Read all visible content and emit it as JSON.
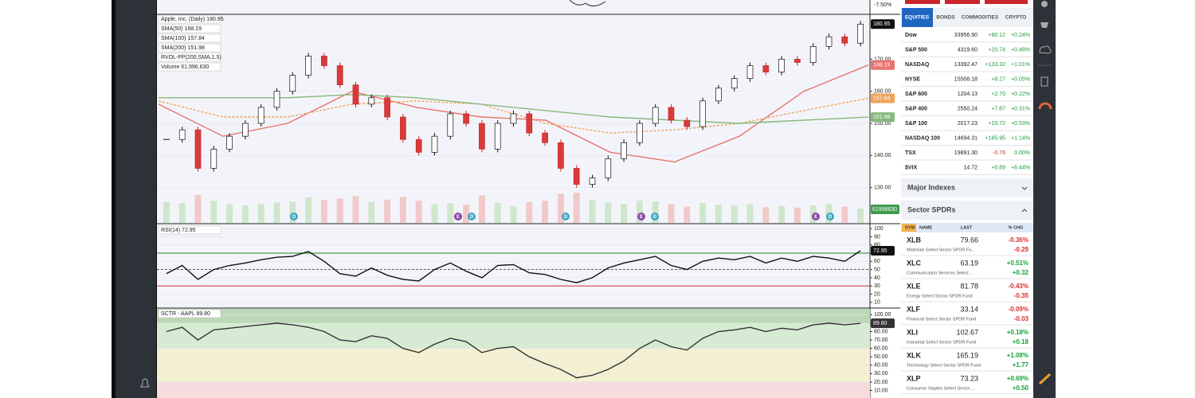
{
  "top_strip": {
    "label": "-7.50%"
  },
  "chart_data": [
    {
      "type": "candlestick",
      "series": [
        {
          "name": "Apple, Inc. (Daily) 180.95",
          "tag": "180.95",
          "color": "#111111",
          "values": [
            145,
            148,
            136,
            142,
            146,
            150,
            155,
            160,
            165,
            171,
            168,
            162,
            156,
            158,
            152,
            145,
            141,
            146,
            153,
            150,
            142,
            150,
            153,
            147,
            144,
            136,
            131,
            133,
            139,
            144,
            150,
            155,
            151,
            149,
            157,
            161,
            164,
            168,
            166,
            170,
            169,
            174,
            177,
            175,
            180.95
          ]
        },
        {
          "name": "SMA(50) 168.19",
          "tag": "168.19",
          "color": "#e8746e",
          "values": [
            156,
            146,
            150,
            160,
            155,
            152,
            151,
            141,
            138,
            146,
            160,
            168.19
          ]
        },
        {
          "name": "SMA(100) 157.84",
          "tag": "157.84",
          "color": "#f0a35a",
          "dashed": true,
          "values": [
            157,
            152,
            152,
            156,
            157,
            156,
            150,
            147,
            148,
            150,
            154,
            157.84
          ]
        },
        {
          "name": "SMA(200) 151.98",
          "tag": "151.98",
          "color": "#86b97a",
          "values": [
            158,
            158,
            158,
            159,
            158,
            156,
            154,
            152,
            151,
            150,
            151,
            151.98
          ]
        }
      ],
      "indicators": [
        "RVOL-PP(200,SMA,1.5)"
      ],
      "volume": {
        "name": "Volume 61,996,630",
        "tag": "61996630",
        "color": "#3f9b4f",
        "values": [
          90000000,
          85000000,
          120000000,
          95000000,
          80000000,
          75000000,
          82000000,
          88000000,
          92000000,
          110000000,
          98000000,
          105000000,
          115000000,
          90000000,
          100000000,
          112000000,
          95000000,
          80000000,
          85000000,
          78000000,
          118000000,
          86000000,
          72000000,
          90000000,
          95000000,
          125000000,
          130000000,
          100000000,
          88000000,
          82000000,
          96000000,
          92000000,
          80000000,
          70000000,
          85000000,
          78000000,
          74000000,
          80000000,
          68000000,
          72000000,
          66000000,
          75000000,
          80000000,
          70000000,
          61996630
        ]
      },
      "ylim": [
        119,
        184
      ],
      "yticks": [
        {
          "value": 170,
          "label": "170.00"
        },
        {
          "value": 160,
          "label": "160.00"
        },
        {
          "value": 150,
          "label": "150.00"
        },
        {
          "value": 140,
          "label": "140.00"
        },
        {
          "value": 130,
          "label": "130.00"
        }
      ],
      "events": [
        "D",
        "E",
        "D",
        "D",
        "E",
        "D",
        "E",
        "D"
      ]
    },
    {
      "type": "line",
      "series": [
        {
          "name": "RSI(14) 72.95",
          "tag": "72.95",
          "color": "#111111",
          "values": [
            45,
            55,
            38,
            50,
            55,
            58,
            62,
            65,
            66,
            72,
            60,
            45,
            42,
            52,
            43,
            38,
            36,
            50,
            58,
            48,
            40,
            55,
            56,
            46,
            44,
            38,
            34,
            40,
            52,
            58,
            62,
            66,
            55,
            50,
            60,
            64,
            62,
            66,
            58,
            64,
            60,
            66,
            64,
            60,
            72.95
          ]
        }
      ],
      "levels": [
        {
          "value": 70,
          "color": "#4f9a4a"
        },
        {
          "value": 50,
          "color": "#333333",
          "dashed": true
        },
        {
          "value": 30,
          "color": "#d9534f"
        }
      ],
      "ylim": [
        4,
        104
      ],
      "yticks": [
        100,
        90,
        80,
        70,
        60,
        50,
        40,
        30,
        20,
        10
      ]
    },
    {
      "type": "line",
      "series": [
        {
          "name": "SCTR - AAPL 89.80",
          "tag": "89.80",
          "color": "#333333",
          "values": [
            80,
            85,
            70,
            82,
            84,
            86,
            88,
            90,
            88,
            85,
            80,
            70,
            68,
            75,
            72,
            60,
            55,
            65,
            72,
            68,
            55,
            60,
            62,
            50,
            42,
            35,
            25,
            28,
            35,
            45,
            60,
            70,
            62,
            58,
            72,
            80,
            82,
            85,
            80,
            84,
            82,
            88,
            90,
            88,
            89.8
          ]
        }
      ],
      "zones": [
        {
          "from": 0,
          "to": 20,
          "color": "#f6dcdc"
        },
        {
          "from": 20,
          "to": 60,
          "color": "#f4f0d2"
        },
        {
          "from": 60,
          "to": 90,
          "color": "#d6ecd2"
        },
        {
          "from": 90,
          "to": 107,
          "color": "#bcd8b6"
        }
      ],
      "ylim": [
        1,
        107
      ],
      "yticks": [
        {
          "value": 100,
          "label": "100.00"
        },
        {
          "value": 90,
          "label": "90.00"
        },
        {
          "value": 80,
          "label": "80.00"
        },
        {
          "value": 70,
          "label": "70.00"
        },
        {
          "value": 60,
          "label": "60.00"
        },
        {
          "value": 50,
          "label": "50.00"
        },
        {
          "value": 40,
          "label": "40.00"
        },
        {
          "value": 30,
          "label": "30.00"
        },
        {
          "value": 20,
          "label": "20.00"
        },
        {
          "value": 10,
          "label": "10.00"
        }
      ]
    }
  ],
  "market_panel": {
    "tabs": [
      "EQUITIES",
      "BONDS",
      "COMMODITIES",
      "CRYPTO"
    ],
    "rows": [
      [
        "Dow",
        "33956.90",
        "+80.12",
        "+0.24%"
      ],
      [
        "S&P 500",
        "4319.60",
        "+20.74",
        "+0.48%"
      ],
      [
        "NASDAQ",
        "13392.47",
        "+133.32",
        "+1.01%"
      ],
      [
        "NYSE",
        "15508.18",
        "+8.27",
        "+0.05%"
      ],
      [
        "S&P 600",
        "1204.13",
        "+2.70",
        "+0.22%"
      ],
      [
        "S&P 400",
        "2550.24",
        "+7.87",
        "+0.31%"
      ],
      [
        "S&P 100",
        "2017.23",
        "+10.72",
        "+0.53%"
      ],
      [
        "NASDAQ 100",
        "14694.31",
        "+165.95",
        "+1.14%"
      ],
      [
        "TSX",
        "19891.30",
        "-0.76",
        "0.00%"
      ],
      [
        "$VIX",
        "14.72",
        "+0.89",
        "+6.44%"
      ]
    ],
    "sections": [
      "Major Indexes",
      "Sector SPDRs"
    ],
    "sector_header": [
      "SYM",
      "NAME",
      "LAST",
      "% CHG"
    ],
    "sectors": [
      {
        "sym": "XLB",
        "last": "79.66",
        "pct": "-0.36%",
        "name": "Materials Select Sector SPDR Fu...",
        "chg": "-0.29"
      },
      {
        "sym": "XLC",
        "last": "63.19",
        "pct": "+0.51%",
        "name": "Communication Services Select ...",
        "chg": "+0.32"
      },
      {
        "sym": "XLE",
        "last": "81.78",
        "pct": "-0.43%",
        "name": "Energy Select Sector SPDR Fund",
        "chg": "-0.35"
      },
      {
        "sym": "XLF",
        "last": "33.14",
        "pct": "-0.09%",
        "name": "Financial Select Sector SPDR Fund",
        "chg": "-0.03"
      },
      {
        "sym": "XLI",
        "last": "102.67",
        "pct": "+0.18%",
        "name": "Industrial Select Sector SPDR Fund",
        "chg": "+0.18"
      },
      {
        "sym": "XLK",
        "last": "165.19",
        "pct": "+1.08%",
        "name": "Technology Select Sector SPDR Fund",
        "chg": "+1.77"
      },
      {
        "sym": "XLP",
        "last": "73.23",
        "pct": "+0.69%",
        "name": "Consumer Staples Select Sector ...",
        "chg": "+0.50"
      }
    ]
  }
}
